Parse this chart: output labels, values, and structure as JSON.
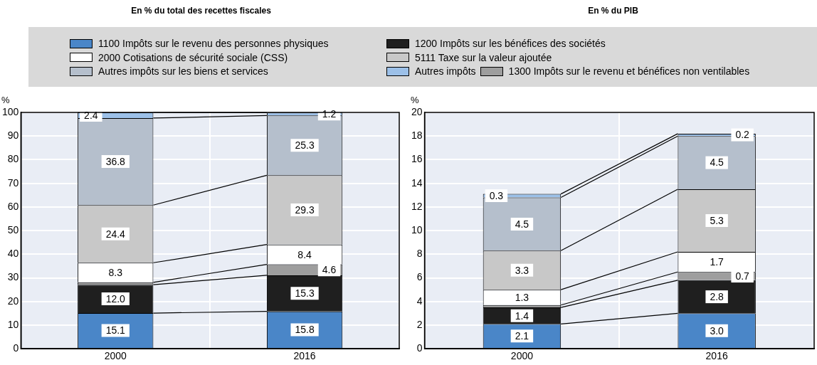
{
  "chart_data": [
    {
      "type": "bar",
      "title": "En % du total des recettes fiscales",
      "ylabel": "%",
      "categories": [
        "2000",
        "2016"
      ],
      "stacked": true,
      "ylim": [
        0,
        100
      ],
      "yticks": [
        0,
        10,
        20,
        30,
        40,
        50,
        60,
        70,
        80,
        90,
        100
      ],
      "grid": true,
      "legend": "top",
      "series": [
        {
          "name": "1100 Impôts sur le revenu des personnes physiques",
          "color": "#4a86c8",
          "values": [
            15.1,
            15.8
          ],
          "value_labels": [
            "15.1",
            "15.8"
          ]
        },
        {
          "name": "1200 Impôts sur les bénéfices des sociétés",
          "color": "#1f1f1f",
          "values": [
            12.0,
            15.3
          ],
          "value_labels": [
            "12.0",
            "15.3"
          ]
        },
        {
          "name": "1300 Impôts sur le revenu et bénéfices non ventilables",
          "color": "#9e9e9e",
          "values": [
            1.0,
            4.6
          ],
          "value_labels": [
            null,
            "4.6"
          ]
        },
        {
          "name": "2000 Cotisations de sécurité sociale (CSS)",
          "color": "#ffffff",
          "values": [
            8.3,
            8.4
          ],
          "value_labels": [
            "8.3",
            "8.4"
          ]
        },
        {
          "name": "5111 Taxe sur la valeur ajoutée",
          "color": "#c8c8c8",
          "values": [
            24.4,
            29.3
          ],
          "value_labels": [
            "24.4",
            "29.3"
          ]
        },
        {
          "name": "Autres impôts sur les biens et services",
          "color": "#b5bfcc",
          "values": [
            36.8,
            25.3
          ],
          "value_labels": [
            "36.8",
            "25.3"
          ]
        },
        {
          "name": "Autres impôts",
          "color": "#9cc0e8",
          "values": [
            2.4,
            1.2
          ],
          "value_labels": [
            "2.4",
            "1.2"
          ]
        }
      ]
    },
    {
      "type": "bar",
      "title": "En % du PIB",
      "ylabel": "%",
      "categories": [
        "2000",
        "2016"
      ],
      "stacked": true,
      "ylim": [
        0,
        20
      ],
      "yticks": [
        0,
        2,
        4,
        6,
        8,
        10,
        12,
        14,
        16,
        18,
        20
      ],
      "grid": true,
      "series": [
        {
          "color": "#4a86c8",
          "values": [
            2.1,
            3.0
          ],
          "value_labels": [
            "2.1",
            "3.0"
          ]
        },
        {
          "color": "#1f1f1f",
          "values": [
            1.4,
            2.8
          ],
          "value_labels": [
            "1.4",
            "2.8"
          ]
        },
        {
          "color": "#9e9e9e",
          "values": [
            0.2,
            0.7
          ],
          "value_labels": [
            null,
            "0.7"
          ]
        },
        {
          "color": "#ffffff",
          "values": [
            1.3,
            1.7
          ],
          "value_labels": [
            "1.3",
            "1.7"
          ]
        },
        {
          "color": "#c8c8c8",
          "values": [
            3.3,
            5.3
          ],
          "value_labels": [
            "3.3",
            "5.3"
          ]
        },
        {
          "color": "#b5bfcc",
          "values": [
            4.5,
            4.5
          ],
          "value_labels": [
            "4.5",
            "4.5"
          ]
        },
        {
          "color": "#9cc0e8",
          "values": [
            0.3,
            0.2
          ],
          "value_labels": [
            "0.3",
            "0.2"
          ]
        }
      ]
    }
  ]
}
